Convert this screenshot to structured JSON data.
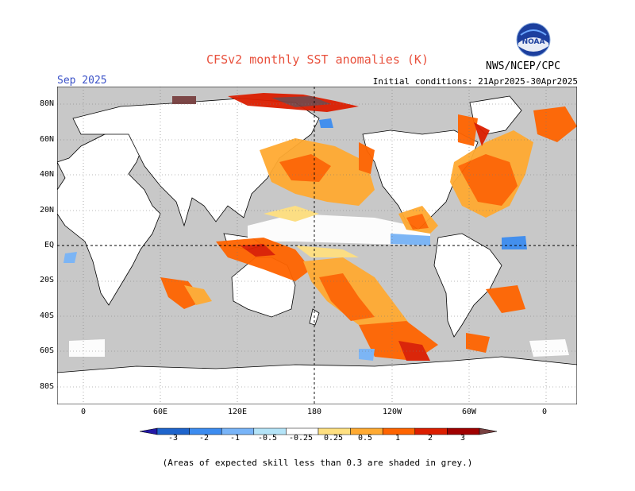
{
  "header": {
    "title": "CFSv2 monthly SST anomalies (K)",
    "month": "Sep 2025",
    "initial_conditions": "Initial conditions: 21Apr2025-30Apr2025",
    "agency": "NWS/NCEP/CPC",
    "logo_text": "NOAA"
  },
  "map": {
    "lat_labels": [
      "80N",
      "60N",
      "40N",
      "20N",
      "EQ",
      "20S",
      "40S",
      "60S",
      "80S"
    ],
    "lon_labels": [
      "0",
      "60E",
      "120E",
      "180",
      "120W",
      "60W",
      "0"
    ],
    "land_color": "#ffffff",
    "low_skill_color": "#c8c8c8"
  },
  "colorbar": {
    "labels": [
      "-3",
      "-2",
      "-1",
      "-0.5",
      "-0.25",
      "0.25",
      "0.5",
      "1",
      "2",
      "3"
    ],
    "colors": [
      "#2419a6",
      "#1e64cc",
      "#3c8cf0",
      "#78b4f8",
      "#b4e4f8",
      "#ffffff",
      "#ffe080",
      "#ffaa32",
      "#ff6400",
      "#dc1e00",
      "#a00000",
      "#784040"
    ]
  },
  "footnote": "(Areas of expected skill less than 0.3 are shaded in grey.)"
}
